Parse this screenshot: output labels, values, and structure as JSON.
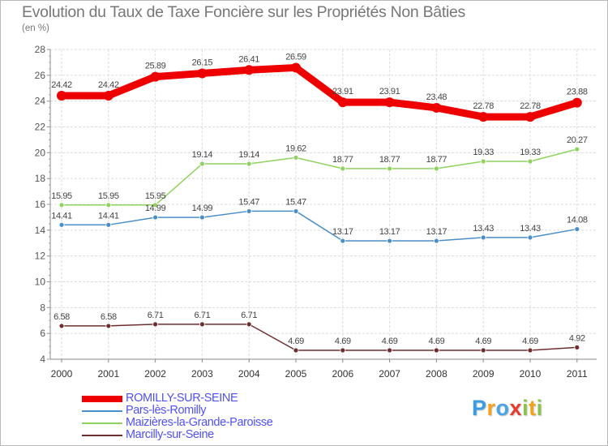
{
  "title": "Evolution du Taux de Taxe Foncière sur les Propriétés Non Bâties",
  "subtitle": "(en %)",
  "logo": {
    "text": "Proxiti",
    "letters": [
      {
        "ch": "P",
        "color": "#3b9de0"
      },
      {
        "ch": "r",
        "color": "#f2a21c"
      },
      {
        "ch": "o",
        "color": "#4aa3e6"
      },
      {
        "ch": "x",
        "color": "#e63b2e"
      },
      {
        "ch": "i",
        "color": "#8bc34a"
      },
      {
        "ch": "t",
        "color": "#f2a21c"
      },
      {
        "ch": "i",
        "color": "#8bc34a"
      }
    ]
  },
  "chart_data": {
    "type": "line",
    "title": "Evolution du Taux de Taxe Foncière sur les Propriétés Non Bâties",
    "ylabel": "(en %)",
    "xlabel": "",
    "x": [
      "2000",
      "2001",
      "2002",
      "2003",
      "2004",
      "2005",
      "2006",
      "2007",
      "2008",
      "2009",
      "2010",
      "2011"
    ],
    "ylim": [
      4,
      28
    ],
    "yticks": [
      4,
      6,
      8,
      10,
      12,
      14,
      16,
      18,
      20,
      22,
      24,
      26,
      28
    ],
    "grid": true,
    "legend_position": "bottom-left",
    "series": [
      {
        "name": "ROMILLY-SUR-SEINE",
        "color": "#ee0000",
        "values": [
          24.42,
          24.42,
          25.89,
          26.15,
          26.41,
          26.59,
          23.91,
          23.91,
          23.48,
          22.78,
          22.78,
          23.88
        ],
        "labels": [
          "24.42",
          "24.42",
          "25.89",
          "26.15",
          "26.41",
          "26.59",
          "23.91",
          "23.91",
          "23.48",
          "22.78",
          "22.78",
          "23.88"
        ]
      },
      {
        "name": "Pars-lès-Romilly",
        "color": "#4a8ec7",
        "values": [
          14.41,
          14.41,
          14.99,
          14.99,
          15.47,
          15.47,
          13.17,
          13.17,
          13.17,
          13.43,
          13.43,
          14.08
        ],
        "labels": [
          "14.41",
          "14.41",
          "14.99",
          "14.99",
          "15.47",
          "15.47",
          "13.17",
          "13.17",
          "13.17",
          "13.43",
          "13.43",
          "14.08"
        ]
      },
      {
        "name": "Maizières-la-Grande-Paroisse",
        "color": "#8ed35f",
        "values": [
          15.95,
          15.95,
          15.95,
          19.14,
          19.14,
          19.62,
          18.77,
          18.77,
          18.77,
          19.33,
          19.33,
          20.27
        ],
        "labels": [
          "15.95",
          "15.95",
          "15.95",
          "19.14",
          "19.14",
          "19.62",
          "18.77",
          "18.77",
          "18.77",
          "19.33",
          "19.33",
          "20.27"
        ]
      },
      {
        "name": "Marcilly-sur-Seine",
        "color": "#6e2e2e",
        "values": [
          6.58,
          6.58,
          6.71,
          6.71,
          6.71,
          4.69,
          4.69,
          4.69,
          4.69,
          4.69,
          4.69,
          4.92
        ],
        "labels": [
          "6.58",
          "6.58",
          "6.71",
          "6.71",
          "6.71",
          "4.69",
          "4.69",
          "4.69",
          "4.69",
          "4.69",
          "4.69",
          "4.92"
        ]
      }
    ]
  }
}
